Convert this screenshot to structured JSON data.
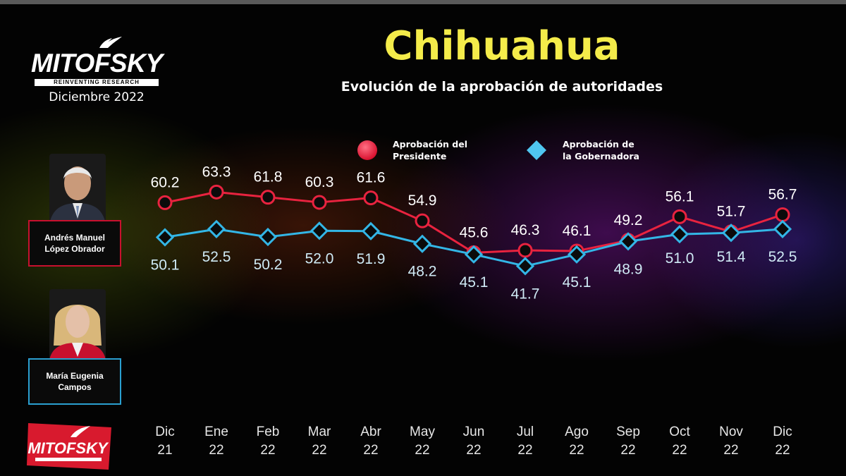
{
  "header": {
    "brand": "MITOFSKY",
    "tagline": "REINVENTING RESEARCH",
    "date": "Diciembre 2022",
    "title": "Chihuahua",
    "subtitle": "Evolución de la aprobación de autoridades"
  },
  "people": [
    {
      "name_line1": "Andrés Manuel",
      "name_line2": "López Obrador",
      "accent": "#c8102e"
    },
    {
      "name_line1": "María Eugenia",
      "name_line2": "Campos",
      "accent": "#2a9fd0"
    }
  ],
  "badge": {
    "brand": "MITOFSKY"
  },
  "colors": {
    "president": "#e8233f",
    "governor": "#33b6e6",
    "title": "#f4ec4a"
  },
  "chart_data": {
    "type": "line",
    "categories": [
      "Dic 21",
      "Ene 22",
      "Feb 22",
      "Mar 22",
      "Abr 22",
      "May 22",
      "Jun 22",
      "Jul 22",
      "Ago 22",
      "Sep 22",
      "Oct 22",
      "Nov 22",
      "Dic 22"
    ],
    "category_lines": [
      [
        "Dic",
        "21"
      ],
      [
        "Ene",
        "22"
      ],
      [
        "Feb",
        "22"
      ],
      [
        "Mar",
        "22"
      ],
      [
        "Abr",
        "22"
      ],
      [
        "May",
        "22"
      ],
      [
        "Jun",
        "22"
      ],
      [
        "Jul",
        "22"
      ],
      [
        "Ago",
        "22"
      ],
      [
        "Sep",
        "22"
      ],
      [
        "Oct",
        "22"
      ],
      [
        "Nov",
        "22"
      ],
      [
        "Dic",
        "22"
      ]
    ],
    "series": [
      {
        "name": "Aprobación del Presidente",
        "legend_lines": [
          "Aprobación del",
          "Presidente"
        ],
        "marker": "circle",
        "color": "#e8233f",
        "values": [
          60.2,
          63.3,
          61.8,
          60.3,
          61.6,
          54.9,
          45.6,
          46.3,
          46.1,
          49.2,
          56.1,
          51.7,
          56.7
        ],
        "labels": [
          "60.2",
          "63.3",
          "61.8",
          "60.3",
          "61.6",
          "54.9",
          "45.6",
          "46.3",
          "46.1",
          "49.2",
          "56.1",
          "51.7",
          "56.7"
        ]
      },
      {
        "name": "Aprobación de la Gobernadora",
        "legend_lines": [
          "Aprobación de",
          "la Gobernadora"
        ],
        "marker": "diamond",
        "color": "#33b6e6",
        "values": [
          50.1,
          52.5,
          50.2,
          52.0,
          51.9,
          48.2,
          45.1,
          41.7,
          45.1,
          48.9,
          51.0,
          51.4,
          52.5
        ],
        "labels": [
          "50.1",
          "52.5",
          "50.2",
          "52.0",
          "51.9",
          "48.2",
          "45.1",
          "41.7",
          "45.1",
          "48.9",
          "51.0",
          "51.4",
          "52.5"
        ]
      }
    ],
    "legend_position": "top-center",
    "grid": false
  }
}
